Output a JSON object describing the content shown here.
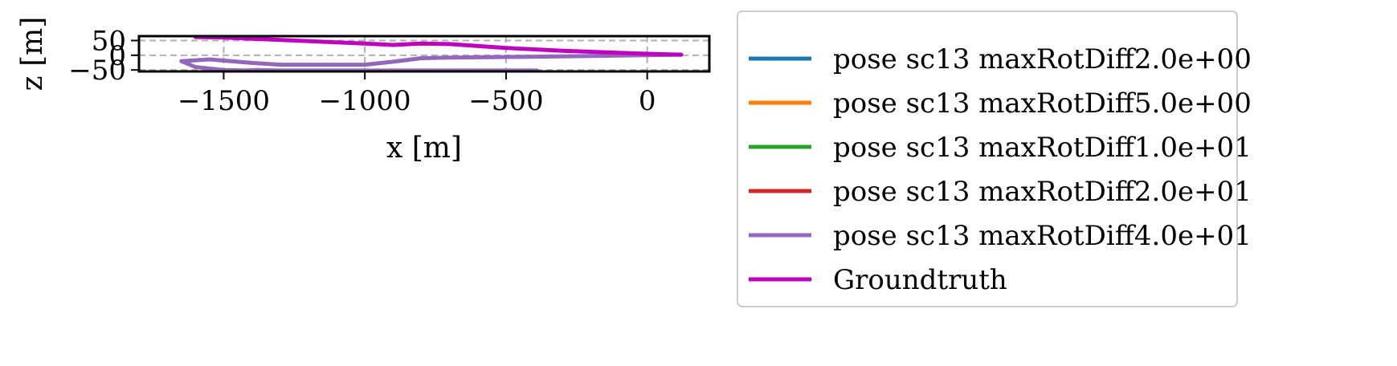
{
  "chart_data": {
    "type": "line",
    "xlabel": "x [m]",
    "ylabel": "z [m]",
    "xlim": [
      -1800,
      220
    ],
    "ylim": [
      -55,
      65
    ],
    "xticks": [
      -1500,
      -1000,
      -500,
      0
    ],
    "xtick_labels": [
      "−1500",
      "−1000",
      "−500",
      "0"
    ],
    "yticks": [
      -50,
      0,
      50
    ],
    "ytick_labels": [
      "−50",
      "0",
      "50"
    ],
    "grid": true,
    "legend_position": "outside-right",
    "series": [
      {
        "name": "pose sc13 maxRotDiff2.0e+00",
        "color": "#1f77b4",
        "x": [],
        "y": []
      },
      {
        "name": "pose sc13 maxRotDiff5.0e+00",
        "color": "#ff7f0e",
        "x": [],
        "y": []
      },
      {
        "name": "pose sc13 maxRotDiff1.0e+01",
        "color": "#2ca02c",
        "x": [],
        "y": []
      },
      {
        "name": "pose sc13 maxRotDiff2.0e+01",
        "color": "#d62728",
        "x": [],
        "y": []
      },
      {
        "name": "pose sc13 maxRotDiff4.0e+01",
        "color": "#9467bd",
        "x": [
          120,
          0,
          -300,
          -500,
          -700,
          -800,
          -900,
          -1000,
          -1300,
          -1400,
          -1550,
          -1650,
          -1600,
          -1500,
          -1420,
          -1380,
          -1300,
          -1000,
          -700,
          -500,
          -390
        ],
        "y": [
          2,
          0,
          -4,
          -6,
          -8,
          -10,
          -22,
          -32,
          -32,
          -26,
          -14,
          -20,
          -40,
          -50,
          -52,
          -50,
          -52,
          -52,
          -52,
          -52,
          -52
        ]
      },
      {
        "name": "Groundtruth",
        "color": "#bf00bf",
        "x": [
          120,
          0,
          -300,
          -500,
          -700,
          -800,
          -900,
          -1000,
          -1200,
          -1400,
          -1500,
          -1600
        ],
        "y": [
          2,
          5,
          15,
          25,
          38,
          40,
          35,
          40,
          48,
          56,
          60,
          62
        ]
      }
    ]
  }
}
